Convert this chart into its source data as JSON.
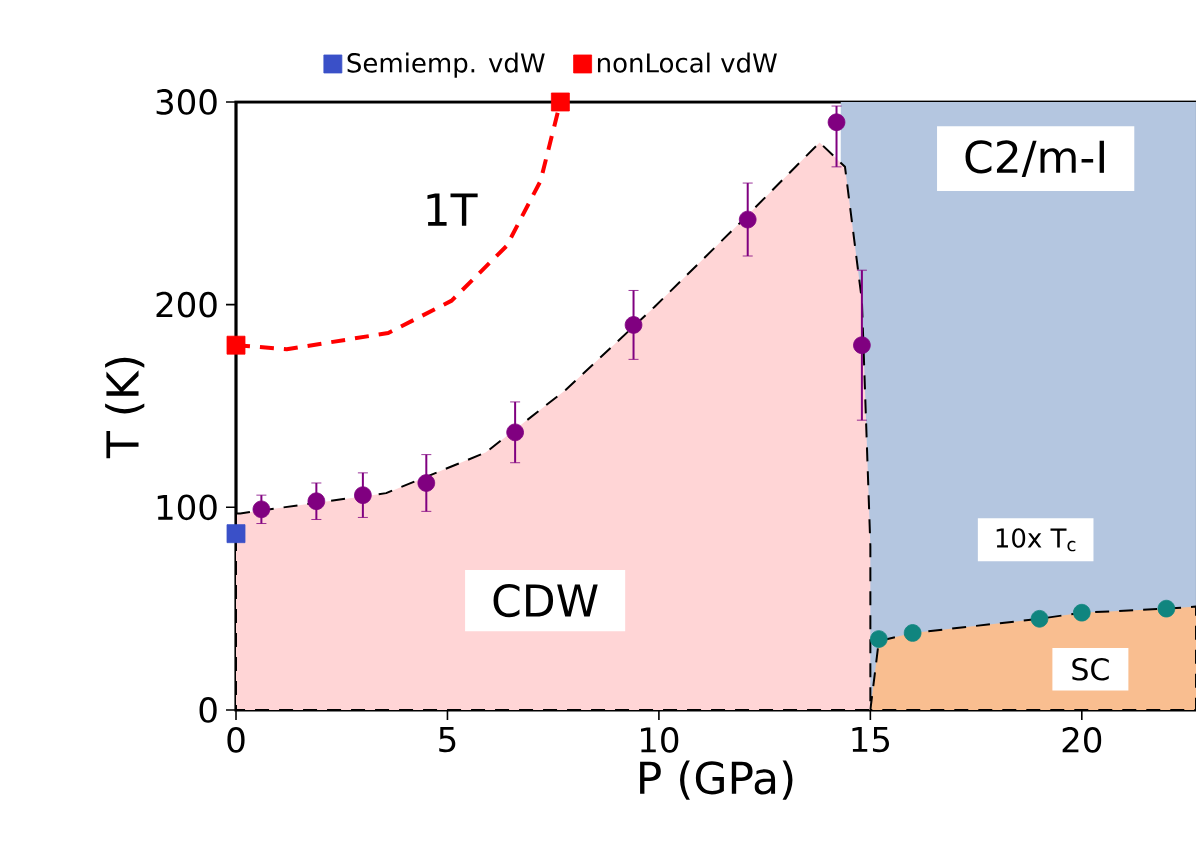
{
  "chart_data": {
    "type": "scatter",
    "xlabel": "P (GPa)",
    "ylabel": "T (K)",
    "xlim": [
      0,
      22.7
    ],
    "ylim": [
      0,
      300
    ],
    "xticks": [
      0,
      5,
      10,
      15,
      20
    ],
    "yticks": [
      0,
      100,
      200,
      300
    ],
    "grid": false,
    "legend": "top",
    "bands": [
      {
        "axis": "x",
        "from": 14.3,
        "to": 22.7,
        "color": "#b4c6e0"
      }
    ],
    "series": [
      {
        "type": "area",
        "color": "#ffd5d6",
        "line_style": "dashed",
        "x": [
          0,
          0.1,
          3.55,
          5.9,
          7.8,
          9.9,
          11.9,
          13.8,
          14.4,
          14.8,
          15.0,
          15.0
        ],
        "values": [
          97,
          97,
          107,
          127,
          158,
          199,
          240,
          280,
          268,
          202,
          81,
          0
        ]
      },
      {
        "type": "area",
        "color": "#f9be90",
        "line_style": "dashed",
        "x": [
          15.0,
          15.2,
          16.0,
          19.0,
          20.0,
          22.0,
          22.7
        ],
        "values": [
          0,
          34,
          38,
          45,
          48,
          50,
          51
        ]
      },
      {
        "type": "line",
        "color": "#ff0000",
        "line_style": "dashed",
        "marker": "none",
        "x": [
          0,
          1.2,
          3.6,
          5.1,
          6.4,
          7.2,
          7.67
        ],
        "values": [
          180,
          178,
          186,
          202,
          229,
          261,
          300
        ]
      },
      {
        "color": "#800080",
        "marker": "circle",
        "x": [
          0.6,
          1.9,
          3.0,
          4.5,
          6.6,
          9.4,
          12.1,
          14.2,
          14.8
        ],
        "values": [
          99,
          103,
          106,
          112,
          137,
          190,
          242,
          290,
          180
        ],
        "errors": [
          7,
          9,
          11,
          14,
          15,
          17,
          18,
          [
            268,
            298
          ],
          37
        ]
      },
      {
        "color": "#10857f",
        "marker": "circle",
        "x": [
          15.2,
          16.0,
          19.0,
          20.0,
          22.0
        ],
        "values": [
          35,
          38,
          45,
          48,
          50
        ]
      },
      {
        "name": "Semiemp. vdW",
        "color": "#3a50c8",
        "marker": "square",
        "x": [
          0
        ],
        "values": [
          87
        ]
      },
      {
        "name": "nonLocal vdW",
        "color": "#ff0000",
        "marker": "square",
        "x": [
          0,
          7.67
        ],
        "values": [
          180,
          300
        ]
      }
    ],
    "annotations": [
      "1T",
      "CDW",
      "C2/m-I",
      "10x T$_{c}$",
      "SC"
    ]
  }
}
